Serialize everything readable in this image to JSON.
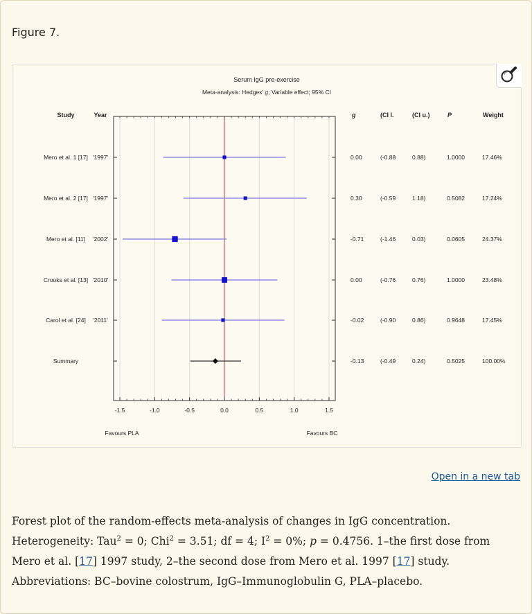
{
  "figure_label": "Figure 7.",
  "open_link": "Open in a new tab",
  "caption": {
    "part1": "Forest plot of the random-effects meta-analysis of changes in IgG concentration. Heterogeneity: Tau",
    "sup1": "2",
    "part2": " = 0; Chi",
    "sup2": "2",
    "part3": " = 3.51; df = 4; I",
    "sup3": "2",
    "part4": " = 0%; ",
    "p_italic": "p",
    "part5": " = 0.4756. 1–the first dose from Mero et al. [",
    "ref1": "17",
    "part6": "] 1997 study, 2–the second dose from Mero et al. 1997 [",
    "ref2": "17",
    "part7": "] study. Abbreviations: BC–bovine colostrum, IgG–Immunoglobulin G, PLA–placebo."
  },
  "chart_data": {
    "type": "forest",
    "title": "Serum IgG pre-exercise",
    "subtitle_prefix": "Meta-analysis: Hedges'",
    "subtitle_g": "g",
    "subtitle_suffix": "; Variable effect; 95% CI",
    "headers": {
      "study": "Study",
      "year": "Year",
      "g": "g",
      "cil": "(CI l.",
      "ciu": "(CI u.)",
      "p": "P",
      "weight": "Weight"
    },
    "xlim": [
      -1.5,
      1.5
    ],
    "xticks": [
      "-1.5",
      "-1.0",
      "-0.5",
      "0.0",
      "0.5",
      "1.0",
      "1.5"
    ],
    "xtick_values": [
      -1.5,
      -1.0,
      -0.5,
      0.0,
      0.5,
      1.0,
      1.5
    ],
    "favours_left": "Favours PLA",
    "favours_right": "Favours BC",
    "colors": {
      "study": "#1111cc",
      "ci_line": "#7777dd",
      "summary": "#000000",
      "zero_line": "#cc3344"
    },
    "rows": [
      {
        "study": "Mero et al. 1 [17]",
        "year": "'1997'",
        "g": 0.0,
        "g_text": "0.00",
        "cil": -0.88,
        "cil_text": "(-0.88",
        "ciu": 0.88,
        "ciu_text": "0.88)",
        "p": "1.0000",
        "weight": "17.46%",
        "weight_value": 17.46
      },
      {
        "study": "Mero et al. 2 [17]",
        "year": "'1997'",
        "g": 0.3,
        "g_text": "0.30",
        "cil": -0.59,
        "cil_text": "(-0.59",
        "ciu": 1.18,
        "ciu_text": "1.18)",
        "p": "0.5082",
        "weight": "17.24%",
        "weight_value": 17.24
      },
      {
        "study": "Mero et al. [11]",
        "year": "'2002'",
        "g": -0.71,
        "g_text": "-0.71",
        "cil": -1.46,
        "cil_text": "(-1.46",
        "ciu": 0.03,
        "ciu_text": "0.03)",
        "p": "0.0605",
        "weight": "24.37%",
        "weight_value": 24.37
      },
      {
        "study": "Crooks et al. [13]",
        "year": "'2010'",
        "g": 0.0,
        "g_text": "0.00",
        "cil": -0.76,
        "cil_text": "(-0.76",
        "ciu": 0.76,
        "ciu_text": "0.76)",
        "p": "1.0000",
        "weight": "23.48%",
        "weight_value": 23.48
      },
      {
        "study": "Carol et al. [24]",
        "year": "'2011'",
        "g": -0.02,
        "g_text": "-0.02",
        "cil": -0.9,
        "cil_text": "(-0.90",
        "ciu": 0.86,
        "ciu_text": "0.86)",
        "p": "0.9648",
        "weight": "17.45%",
        "weight_value": 17.45
      }
    ],
    "summary": {
      "study": "Summary",
      "year": "",
      "g": -0.13,
      "g_text": "-0.13",
      "cil": -0.49,
      "cil_text": "(-0.49",
      "ciu": 0.24,
      "ciu_text": "0.24)",
      "p": "0.5025",
      "weight": "100.00%"
    }
  }
}
